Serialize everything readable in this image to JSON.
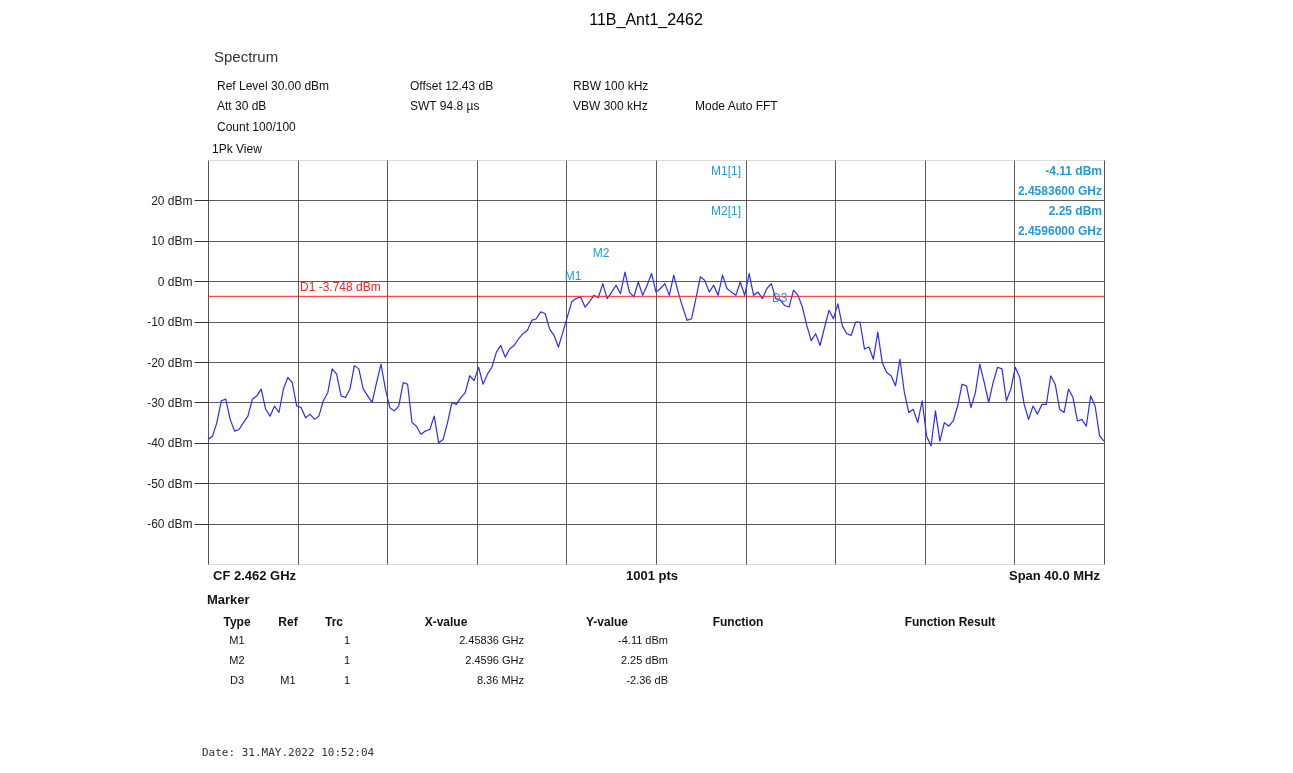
{
  "chart_data": {
    "type": "line",
    "title": "11B_Ant1_2462",
    "series": [
      {
        "color": "#2b2bff",
        "values": [
          -39.2,
          -38.4,
          -35.0,
          -29.6,
          -29.2,
          -34.2,
          -37.1,
          -36.7,
          -35.0,
          -33.4,
          -29.2,
          -28.4,
          -26.7,
          -31.7,
          -33.4,
          -30.9,
          -32.5,
          -26.7,
          -23.8,
          -25.1,
          -30.9,
          -31.3,
          -33.8,
          -32.9,
          -34.2,
          -33.4,
          -29.6,
          -27.6,
          -21.7,
          -23.0,
          -28.4,
          -28.8,
          -26.7,
          -20.9,
          -21.7,
          -26.7,
          -28.4,
          -30.0,
          -25.1,
          -20.5,
          -26.7,
          -31.3,
          -32.1,
          -30.9,
          -25.1,
          -25.5,
          -35.0,
          -35.9,
          -37.9,
          -37.1,
          -36.7,
          -33.4,
          -40.0,
          -39.2,
          -35.0,
          -30.0,
          -30.5,
          -28.8,
          -27.6,
          -23.4,
          -24.6,
          -21.3,
          -25.5,
          -23.0,
          -21.3,
          -17.6,
          -15.9,
          -18.8,
          -16.8,
          -15.9,
          -14.3,
          -13.0,
          -12.2,
          -9.7,
          -9.3,
          -7.6,
          -8.0,
          -11.8,
          -13.4,
          -16.3,
          -12.6,
          -8.9,
          -5.1,
          -4.3,
          -3.9,
          -6.4,
          -5.1,
          -3.5,
          -4.11,
          -0.6,
          -4.3,
          -2.7,
          -1.0,
          -3.1,
          2.25,
          -2.7,
          -3.9,
          -0.2,
          -3.5,
          -1.0,
          1.9,
          -2.7,
          -1.8,
          -0.6,
          -3.5,
          1.5,
          -2.7,
          -6.4,
          -9.7,
          -9.3,
          -4.3,
          1.1,
          0.2,
          -2.7,
          -1.0,
          -3.5,
          1.5,
          -1.8,
          -2.7,
          -3.5,
          -0.2,
          -3.5,
          1.9,
          -3.5,
          -2.7,
          -4.3,
          -1.8,
          -0.6,
          -4.3,
          -4.7,
          -6.0,
          -6.4,
          -2.2,
          -3.5,
          -6.4,
          -11.0,
          -14.7,
          -13.0,
          -15.9,
          -11.4,
          -7.2,
          -9.3,
          -5.6,
          -11.0,
          -13.0,
          -13.4,
          -10.1,
          -10.1,
          -16.8,
          -16.3,
          -19.3,
          -12.6,
          -20.1,
          -22.6,
          -23.4,
          -25.9,
          -19.3,
          -27.6,
          -32.5,
          -31.7,
          -35.0,
          -29.6,
          -38.3,
          -40.8,
          -32.1,
          -39.6,
          -35.0,
          -35.9,
          -34.6,
          -30.9,
          -25.5,
          -25.9,
          -31.3,
          -27.6,
          -20.5,
          -25.1,
          -30.0,
          -25.1,
          -21.3,
          -21.7,
          -29.6,
          -26.7,
          -21.3,
          -23.8,
          -30.5,
          -34.2,
          -30.9,
          -32.9,
          -30.5,
          -30.5,
          -23.4,
          -25.5,
          -31.7,
          -32.5,
          -26.7,
          -28.8,
          -34.6,
          -34.2,
          -35.9,
          -28.4,
          -30.9,
          -38.3,
          -39.6
        ]
      }
    ],
    "categories": [
      null,
      null,
      null,
      null,
      null,
      null,
      null,
      null,
      null,
      null,
      null,
      null,
      null,
      null,
      null,
      null,
      null,
      null,
      null,
      null,
      null,
      null,
      null,
      null,
      null,
      null,
      null,
      null,
      null,
      null,
      null,
      null,
      null,
      null,
      null,
      null,
      null,
      null,
      null,
      null,
      null,
      null,
      null,
      null,
      null,
      null,
      null,
      null,
      null,
      null,
      null,
      null,
      null,
      null,
      null,
      null,
      null,
      null,
      null,
      null,
      null,
      null,
      null,
      null,
      null,
      null,
      null,
      null,
      null,
      null,
      null,
      null,
      null,
      null,
      null,
      null,
      null,
      null,
      null,
      null,
      null,
      null,
      null,
      null,
      null,
      null,
      null,
      null,
      null,
      null,
      null,
      null,
      null,
      null,
      null,
      null,
      null,
      null,
      null,
      null,
      null,
      null,
      null,
      null,
      null,
      null,
      null,
      null,
      null,
      null,
      null,
      null,
      null,
      null,
      null,
      null,
      null,
      null,
      null,
      null,
      null,
      null,
      null,
      null,
      null,
      null,
      null,
      null,
      null,
      null,
      null,
      null,
      null,
      null,
      null,
      null,
      null,
      null,
      null,
      null,
      null,
      null,
      null,
      null,
      null,
      null,
      null,
      null,
      null,
      null,
      null,
      null,
      null,
      null,
      null,
      null,
      null,
      null,
      null,
      null,
      null,
      null,
      null,
      null,
      null,
      null,
      null,
      null,
      null,
      null,
      null,
      null,
      null,
      null,
      null,
      null,
      null,
      null,
      null,
      null,
      null,
      null,
      null,
      null,
      null,
      null,
      null,
      null,
      null,
      null,
      null,
      null,
      null,
      null,
      null,
      null,
      null,
      null,
      null,
      null,
      null,
      null,
      null
    ],
    "ylim": [
      -70,
      30
    ],
    "yticks": [
      {
        "value": 20,
        "label": "20 dBm"
      },
      {
        "value": 10,
        "label": "10 dBm"
      },
      {
        "value": 0,
        "label": "0 dBm"
      },
      {
        "value": -10,
        "label": "-10 dBm"
      },
      {
        "value": -20,
        "label": "-20 dBm"
      },
      {
        "value": -30,
        "label": "-30 dBm"
      },
      {
        "value": -40,
        "label": "-40 dBm"
      },
      {
        "value": -50,
        "label": "-50 dBm"
      },
      {
        "value": -60,
        "label": "-60 dBm"
      }
    ],
    "tick_labels": "y",
    "grid": true,
    "line_style": "solid",
    "ref_lines": [
      {
        "axis": "y",
        "value": -3.748,
        "label": "D1 -3.748 dBm",
        "color": "#ff2020"
      }
    ],
    "annotations": [
      "M1",
      "M2",
      "D3",
      "Spectrum",
      "Ref Level 30.00 dBm",
      "Offset 12.43 dB",
      "RBW 100 kHz",
      "Att 30 dB",
      "SWT 94.8 µs",
      "VBW 300 kHz",
      "Mode Auto FFT",
      "Count 100/100",
      "1Pk View",
      "M1[1]",
      "-4.11 dBm",
      "2.4583600 GHz",
      "M2[1]",
      "2.25 dBm",
      "2.4596000 GHz",
      "CF 2.462 GHz",
      "1001 pts",
      "Span 40.0 MHz",
      "Marker",
      "Type",
      "Ref",
      "Trc",
      "X-value",
      "Y-value",
      "Function",
      "Function Result",
      "M1",
      "1",
      "2.45836 GHz",
      "-4.11 dBm",
      "M2",
      "1",
      "2.4596 GHz",
      "2.25 dBm",
      "D3",
      "M1",
      "1",
      "8.36 MHz",
      "-2.36 dB",
      "Date: 31.MAY.2022  10:52:04"
    ]
  }
}
